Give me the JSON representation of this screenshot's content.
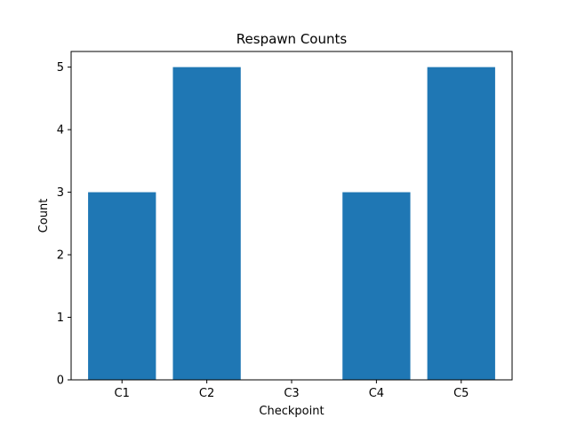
{
  "chart_data": {
    "type": "bar",
    "title": "Respawn Counts",
    "xlabel": "Checkpoint",
    "ylabel": "Count",
    "categories": [
      "C1",
      "C2",
      "C3",
      "C4",
      "C5"
    ],
    "values": [
      3,
      5,
      0,
      3,
      5
    ],
    "ylim": [
      0,
      5.25
    ],
    "yticks": [
      0,
      1,
      2,
      3,
      4,
      5
    ],
    "grid": false,
    "bar_color": "#1f77b4"
  }
}
